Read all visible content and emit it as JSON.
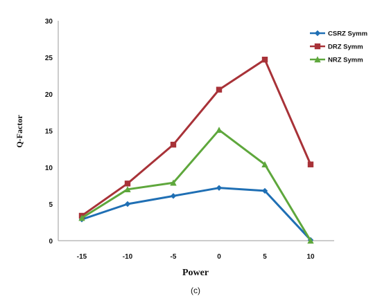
{
  "chart_data": {
    "type": "line",
    "title": "",
    "caption": "(c)",
    "xlabel": "Power",
    "ylabel": "Q-Factor",
    "categories": [
      "-15",
      "-10",
      "-5",
      "0",
      "5",
      "10"
    ],
    "x": [
      -15,
      -10,
      -5,
      0,
      5,
      10
    ],
    "ylim": [
      0,
      30
    ],
    "yticks": [
      0,
      5,
      10,
      15,
      20,
      25,
      30
    ],
    "grid": false,
    "legend_position": "top-right",
    "series": [
      {
        "name": "CSRZ Symm",
        "marker": "diamond",
        "color": "#1f6fb4",
        "values": [
          2.9,
          5.0,
          6.1,
          7.2,
          6.8,
          0.1
        ]
      },
      {
        "name": "DRZ Symm",
        "marker": "square",
        "color": "#a83238",
        "values": [
          3.4,
          7.8,
          13.1,
          20.6,
          24.7,
          10.4
        ]
      },
      {
        "name": "NRZ Symm",
        "marker": "triangle",
        "color": "#5ea73c",
        "values": [
          3.1,
          7.0,
          7.9,
          15.1,
          10.4,
          0.0
        ]
      }
    ]
  }
}
